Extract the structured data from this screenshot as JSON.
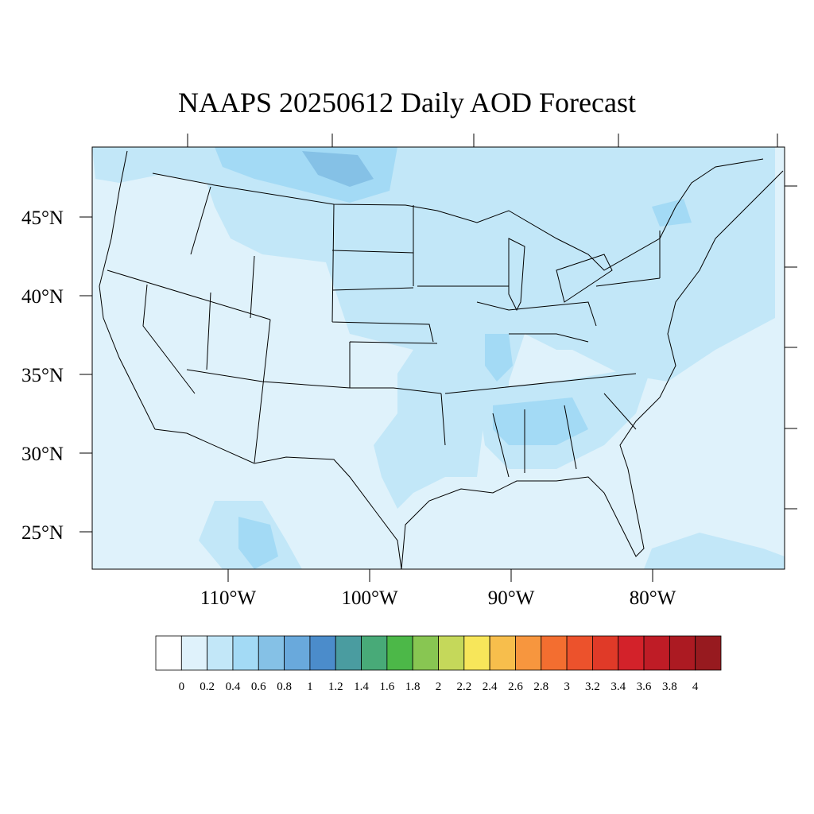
{
  "title": "NAAPS 20250612 Daily AOD Forecast",
  "lat_labels": [
    {
      "text": "45°N",
      "value": 45
    },
    {
      "text": "40°N",
      "value": 40
    },
    {
      "text": "35°N",
      "value": 35
    },
    {
      "text": "30°N",
      "value": 30
    },
    {
      "text": "25°N",
      "value": 25
    }
  ],
  "lon_labels": [
    {
      "text": "110°W",
      "value": -110
    },
    {
      "text": "100°W",
      "value": -100
    },
    {
      "text": "90°W",
      "value": -90
    },
    {
      "text": "80°W",
      "value": -80
    }
  ],
  "colorbar": {
    "colors": [
      "#ffffff",
      "#dff2fb",
      "#c2e7f8",
      "#a3daf5",
      "#85c1e6",
      "#69a9dc",
      "#4b8ccb",
      "#4a9ca0",
      "#48aa78",
      "#4cb848",
      "#88c652",
      "#c5d85a",
      "#f7e65a",
      "#f7be4c",
      "#f7963e",
      "#f36e30",
      "#ec522c",
      "#e03a28",
      "#d3222a",
      "#bf1c26",
      "#ac1a22",
      "#971a1f"
    ],
    "labels": [
      "0",
      "0.2",
      "0.4",
      "0.6",
      "0.8",
      "1",
      "1.2",
      "1.4",
      "1.6",
      "1.8",
      "2",
      "2.2",
      "2.4",
      "2.6",
      "2.8",
      "3",
      "3.2",
      "3.4",
      "3.6",
      "3.8",
      "4"
    ]
  },
  "map": {
    "background_color": "#dff2fb",
    "region_colors": {
      "light": "#dff2fb",
      "medium": "#c2e7f8",
      "darker": "#a3daf5",
      "darkest": "#85c1e6"
    }
  }
}
